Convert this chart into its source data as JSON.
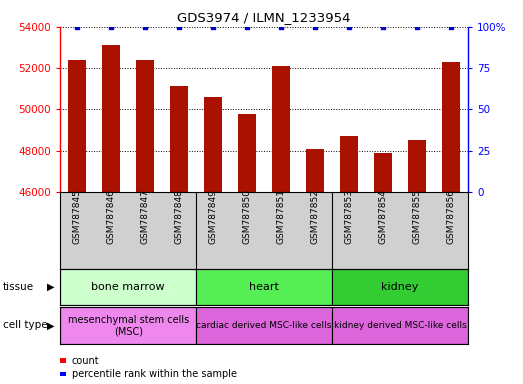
{
  "title": "GDS3974 / ILMN_1233954",
  "samples": [
    "GSM787845",
    "GSM787846",
    "GSM787847",
    "GSM787848",
    "GSM787849",
    "GSM787850",
    "GSM787851",
    "GSM787852",
    "GSM787853",
    "GSM787854",
    "GSM787855",
    "GSM787856"
  ],
  "counts": [
    52400,
    53100,
    52400,
    51150,
    50600,
    49800,
    52100,
    48100,
    48700,
    47900,
    48500,
    52300
  ],
  "percentile_ranks": [
    100,
    100,
    100,
    100,
    100,
    100,
    100,
    100,
    100,
    100,
    100,
    100
  ],
  "ylim_left": [
    46000,
    54000
  ],
  "ylim_right": [
    0,
    100
  ],
  "yticks_left": [
    46000,
    48000,
    50000,
    52000,
    54000
  ],
  "yticks_right": [
    0,
    25,
    50,
    75,
    100
  ],
  "bar_color": "#aa1100",
  "dot_color": "#0000cc",
  "bar_bottom": 46000,
  "tissue_groups": [
    {
      "label": "bone marrow",
      "start": 0,
      "end": 4,
      "color": "#ccffcc"
    },
    {
      "label": "heart",
      "start": 4,
      "end": 8,
      "color": "#55ee55"
    },
    {
      "label": "kidney",
      "start": 8,
      "end": 12,
      "color": "#33cc33"
    }
  ],
  "cell_type_groups": [
    {
      "label": "mesenchymal stem cells\n(MSC)",
      "start": 0,
      "end": 4,
      "color": "#ee88ee"
    },
    {
      "label": "cardiac derived MSC-like cells",
      "start": 4,
      "end": 8,
      "color": "#dd66dd"
    },
    {
      "label": "kidney derived MSC-like cells",
      "start": 8,
      "end": 12,
      "color": "#dd66dd"
    }
  ],
  "tissue_label": "tissue",
  "cell_type_label": "cell type",
  "legend_count_label": "count",
  "legend_pct_label": "percentile rank within the sample",
  "sample_bg_color": "#d0d0d0",
  "background_color": "#ffffff"
}
